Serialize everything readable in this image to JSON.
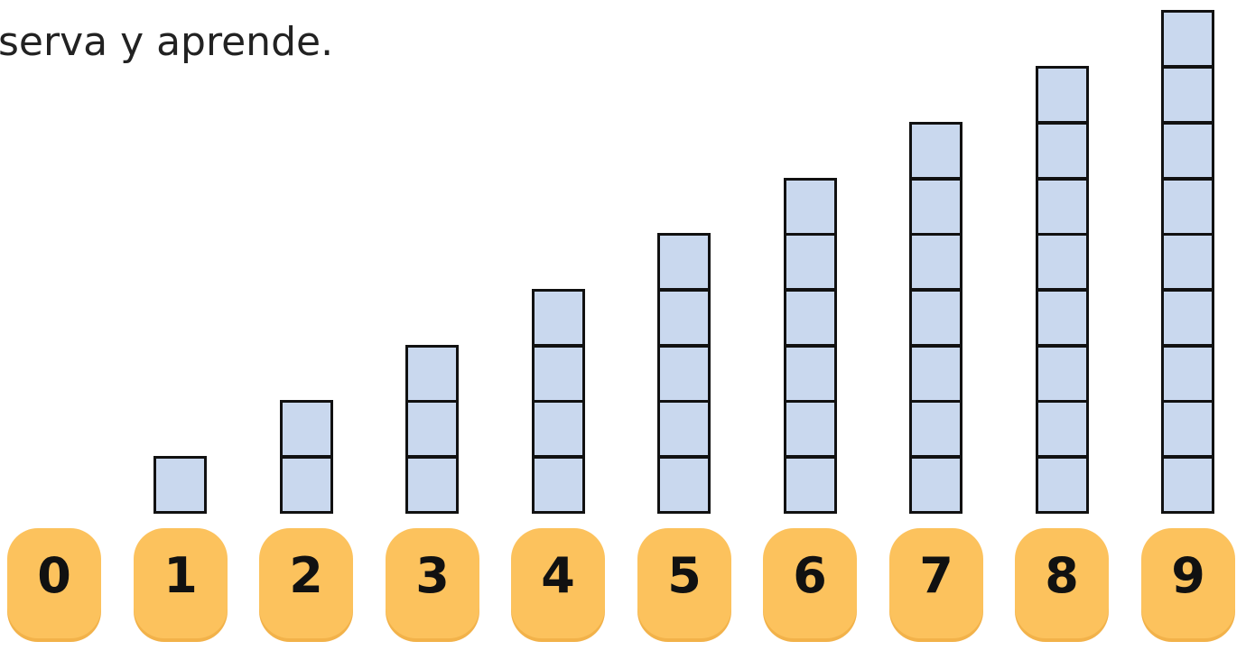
{
  "instruction": "serva y aprende.",
  "colors": {
    "cube_fill": "#c9d8ee",
    "cube_border": "#111111",
    "tile_fill": "#fcc25d"
  },
  "numbers": [
    {
      "digit": "0",
      "cubes": 0
    },
    {
      "digit": "1",
      "cubes": 1
    },
    {
      "digit": "2",
      "cubes": 2
    },
    {
      "digit": "3",
      "cubes": 3
    },
    {
      "digit": "4",
      "cubes": 4
    },
    {
      "digit": "5",
      "cubes": 5
    },
    {
      "digit": "6",
      "cubes": 6
    },
    {
      "digit": "7",
      "cubes": 7
    },
    {
      "digit": "8",
      "cubes": 8
    },
    {
      "digit": "9",
      "cubes": 9
    }
  ]
}
